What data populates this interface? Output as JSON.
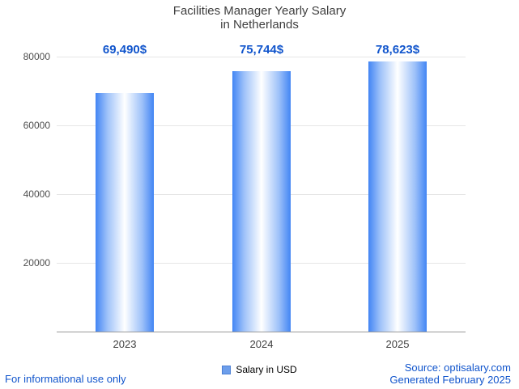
{
  "title": {
    "line1": "Facilities Manager Yearly Salary",
    "line2": "in Netherlands"
  },
  "chart_data": {
    "type": "bar",
    "title": "Facilities Manager Yearly Salary in Netherlands",
    "categories": [
      "2023",
      "2024",
      "2025"
    ],
    "values": [
      69490,
      75744,
      78623
    ],
    "value_labels": [
      "69,490$",
      "75,744$",
      "78,623$"
    ],
    "xlabel": "",
    "ylabel": "",
    "ylim": [
      0,
      80000
    ],
    "yticks": [
      20000,
      40000,
      60000,
      80000
    ],
    "ytick_labels": [
      "20000",
      "40000",
      "60000",
      "80000"
    ],
    "grid": true,
    "legend": {
      "label": "Salary in USD",
      "position": "bottom-center",
      "marker_color": "#6d9eeb"
    },
    "bar_style": {
      "edge_color": "#4285f4",
      "center_color": "#ffffff"
    }
  },
  "footer": {
    "left": "For informational use only",
    "source": "Source: optisalary.com",
    "generated": "Generated February 2025"
  },
  "colors": {
    "value_label": "#1155cc",
    "footer_text": "#1155cc",
    "title_text": "#3f3f3f",
    "gridline": "#e6e6e6",
    "axis_line": "#9a9a9a"
  }
}
